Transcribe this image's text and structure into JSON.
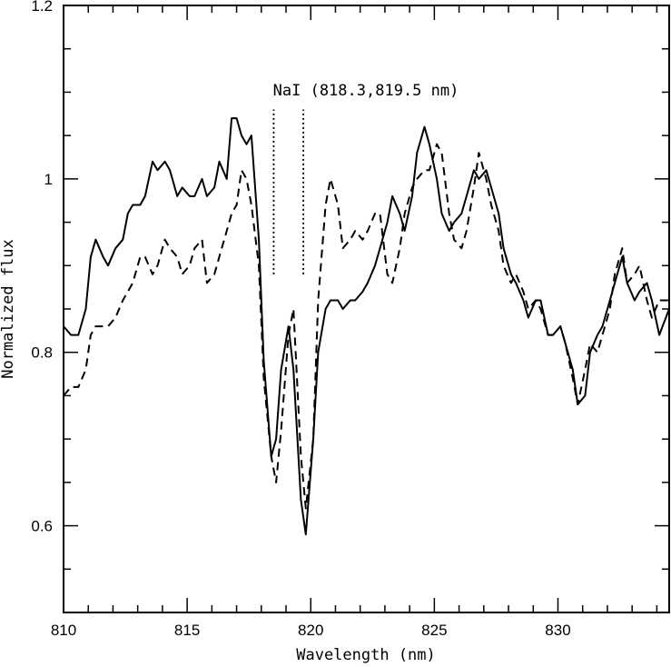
{
  "chart_data": {
    "type": "line",
    "title": "",
    "xlabel": "Wavelength (nm)",
    "ylabel": "Normalized flux",
    "xlim": [
      810,
      834.5
    ],
    "ylim": [
      0.5,
      1.2
    ],
    "x_ticks": [
      "810",
      "815",
      "820",
      "825",
      "830"
    ],
    "y_ticks": [
      "0.6",
      "0.8",
      "1",
      "1.2"
    ],
    "grid": false,
    "legend": "none",
    "annotation": {
      "text": "NaI (818.3,819.5 nm)",
      "lines_x": [
        818.5,
        819.7
      ],
      "lines_y": [
        0.89,
        1.08
      ]
    },
    "series": [
      {
        "style": "solid",
        "x": [
          810.0,
          810.3,
          810.6,
          810.9,
          811.1,
          811.3,
          811.6,
          811.8,
          812.1,
          812.4,
          812.6,
          812.8,
          813.1,
          813.3,
          813.6,
          813.8,
          814.1,
          814.3,
          814.6,
          814.8,
          815.1,
          815.3,
          815.6,
          815.8,
          816.1,
          816.3,
          816.6,
          816.8,
          817.0,
          817.2,
          817.4,
          817.6,
          817.9,
          818.1,
          818.4,
          818.6,
          818.8,
          819.1,
          819.3,
          819.6,
          819.8,
          820.1,
          820.3,
          820.6,
          820.8,
          821.1,
          821.3,
          821.6,
          821.8,
          822.1,
          822.3,
          822.6,
          822.8,
          823.1,
          823.3,
          823.6,
          823.8,
          824.1,
          824.3,
          824.6,
          824.8,
          825.1,
          825.3,
          825.6,
          825.8,
          826.1,
          826.3,
          826.6,
          826.8,
          827.1,
          827.3,
          827.6,
          827.8,
          828.1,
          828.3,
          828.6,
          828.8,
          829.1,
          829.3,
          829.6,
          829.8,
          830.1,
          830.3,
          830.6,
          830.8,
          831.1,
          831.3,
          831.6,
          831.8,
          832.1,
          832.3,
          832.6,
          832.8,
          833.1,
          833.3,
          833.6,
          833.8,
          834.1,
          834.5
        ],
        "y": [
          0.83,
          0.82,
          0.82,
          0.85,
          0.91,
          0.93,
          0.91,
          0.9,
          0.92,
          0.93,
          0.96,
          0.97,
          0.97,
          0.98,
          1.02,
          1.01,
          1.02,
          1.01,
          0.98,
          0.99,
          0.98,
          0.98,
          1.0,
          0.98,
          0.99,
          1.02,
          1.0,
          1.07,
          1.07,
          1.05,
          1.04,
          1.05,
          0.93,
          0.79,
          0.68,
          0.7,
          0.78,
          0.83,
          0.78,
          0.63,
          0.59,
          0.7,
          0.8,
          0.85,
          0.86,
          0.86,
          0.85,
          0.86,
          0.86,
          0.87,
          0.88,
          0.9,
          0.92,
          0.95,
          0.98,
          0.96,
          0.94,
          0.98,
          1.03,
          1.06,
          1.04,
          1.0,
          0.96,
          0.94,
          0.95,
          0.96,
          0.98,
          1.01,
          1.0,
          1.01,
          0.99,
          0.96,
          0.92,
          0.89,
          0.88,
          0.86,
          0.84,
          0.86,
          0.86,
          0.82,
          0.82,
          0.83,
          0.81,
          0.78,
          0.74,
          0.75,
          0.8,
          0.82,
          0.83,
          0.86,
          0.88,
          0.91,
          0.88,
          0.86,
          0.87,
          0.88,
          0.86,
          0.82,
          0.85
        ]
      },
      {
        "style": "dashed",
        "x": [
          810.0,
          810.3,
          810.6,
          810.9,
          811.1,
          811.3,
          811.6,
          811.8,
          812.1,
          812.4,
          812.6,
          812.8,
          813.1,
          813.3,
          813.6,
          813.8,
          814.1,
          814.3,
          814.6,
          814.8,
          815.1,
          815.3,
          815.6,
          815.8,
          816.1,
          816.3,
          816.6,
          816.8,
          817.0,
          817.2,
          817.4,
          817.6,
          817.9,
          818.1,
          818.4,
          818.6,
          818.8,
          819.1,
          819.3,
          819.6,
          819.8,
          820.1,
          820.3,
          820.6,
          820.8,
          821.1,
          821.3,
          821.6,
          821.8,
          822.1,
          822.3,
          822.6,
          822.8,
          823.1,
          823.3,
          823.6,
          823.8,
          824.1,
          824.3,
          824.6,
          824.8,
          825.1,
          825.3,
          825.6,
          825.8,
          826.1,
          826.3,
          826.6,
          826.8,
          827.1,
          827.3,
          827.6,
          827.8,
          828.1,
          828.3,
          828.6,
          828.8,
          829.1,
          829.3,
          829.6,
          829.8,
          830.1,
          830.3,
          830.6,
          830.8,
          831.1,
          831.3,
          831.6,
          831.8,
          832.1,
          832.3,
          832.6,
          832.8,
          833.1,
          833.3,
          833.6,
          833.8,
          834.1,
          834.5
        ],
        "y": [
          0.75,
          0.76,
          0.76,
          0.78,
          0.82,
          0.83,
          0.83,
          0.83,
          0.84,
          0.86,
          0.87,
          0.88,
          0.91,
          0.91,
          0.89,
          0.9,
          0.93,
          0.92,
          0.91,
          0.89,
          0.9,
          0.92,
          0.93,
          0.88,
          0.89,
          0.91,
          0.94,
          0.96,
          0.97,
          1.01,
          1.0,
          0.97,
          0.9,
          0.77,
          0.68,
          0.65,
          0.71,
          0.82,
          0.85,
          0.68,
          0.62,
          0.7,
          0.86,
          0.97,
          1.0,
          0.97,
          0.92,
          0.93,
          0.94,
          0.93,
          0.94,
          0.96,
          0.96,
          0.89,
          0.88,
          0.92,
          0.96,
          0.99,
          1.0,
          1.01,
          1.01,
          1.04,
          1.03,
          0.96,
          0.93,
          0.92,
          0.94,
          0.99,
          1.03,
          1.0,
          0.97,
          0.94,
          0.9,
          0.88,
          0.89,
          0.87,
          0.85,
          0.86,
          0.85,
          0.82,
          0.82,
          0.83,
          0.81,
          0.77,
          0.74,
          0.78,
          0.81,
          0.8,
          0.82,
          0.85,
          0.89,
          0.92,
          0.88,
          0.89,
          0.9,
          0.86,
          0.84,
          0.86,
          0.86
        ]
      }
    ]
  }
}
